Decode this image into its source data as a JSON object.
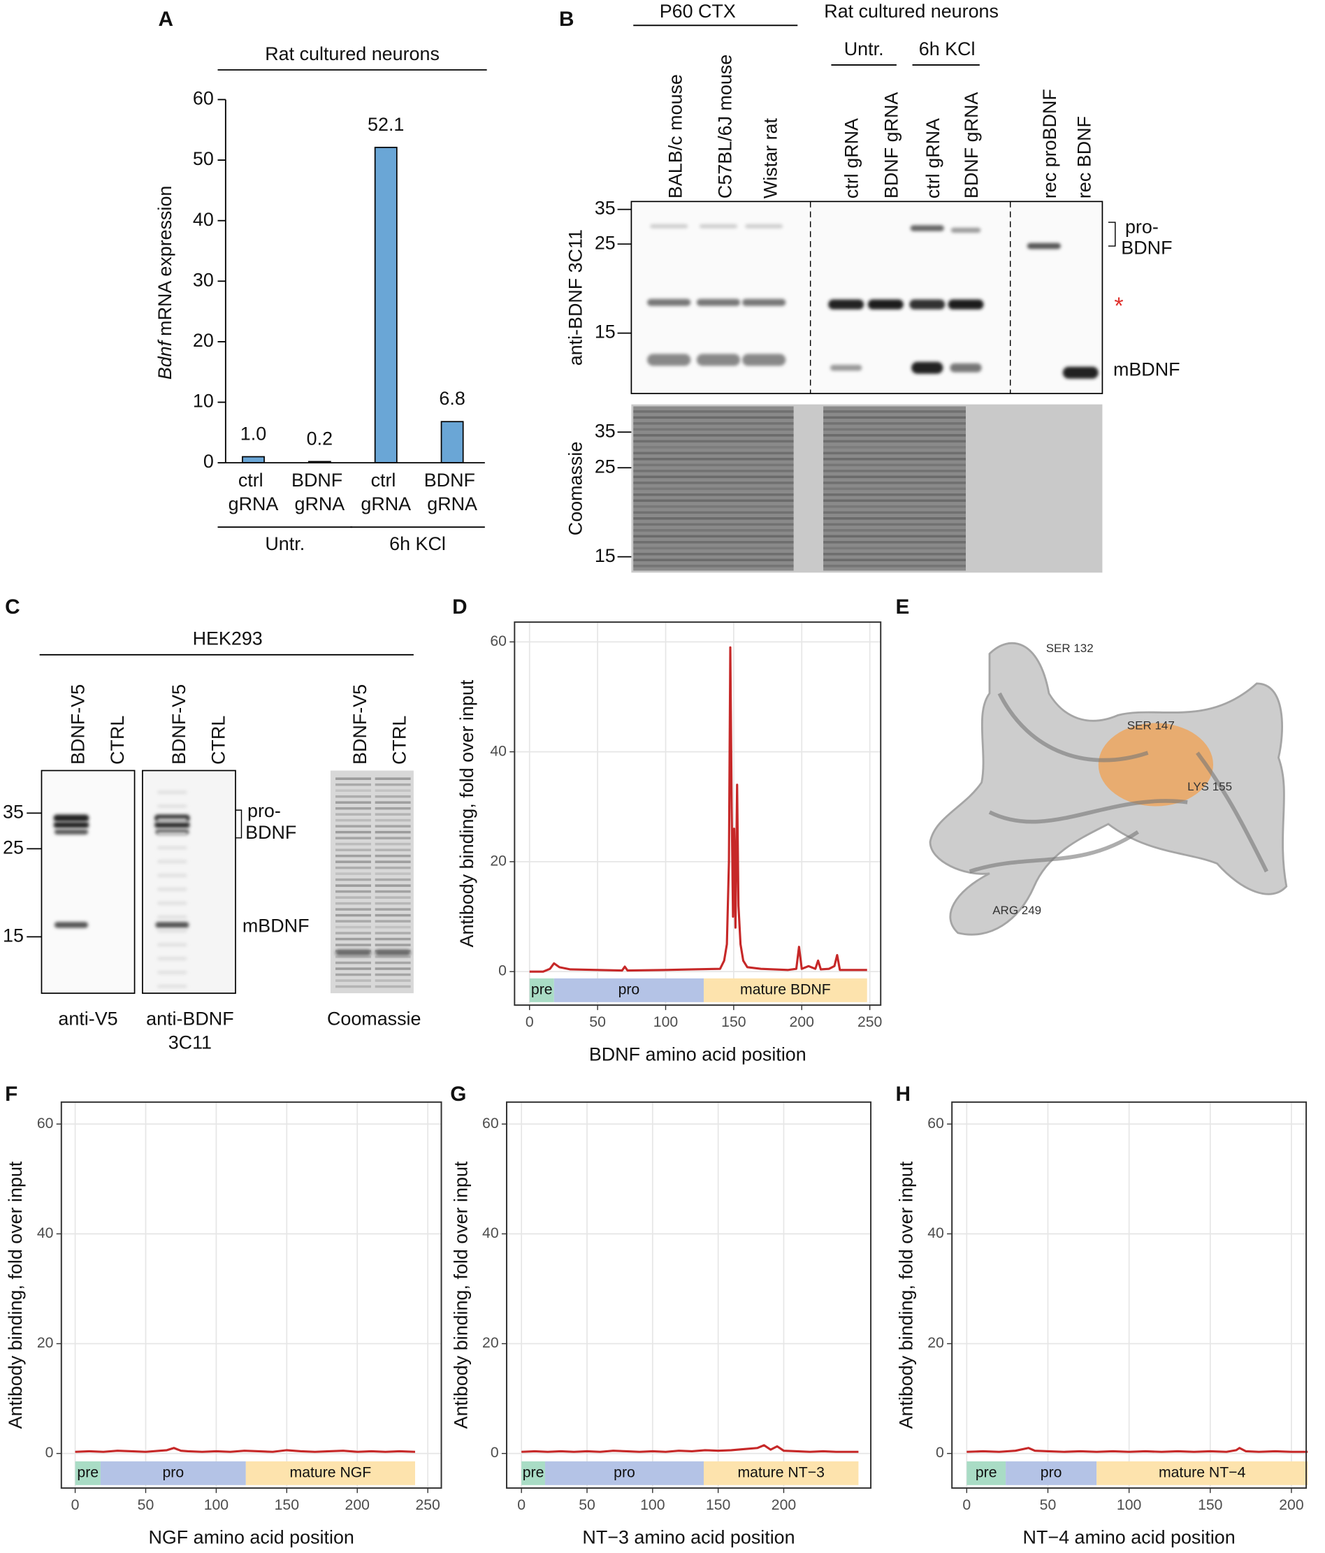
{
  "chart_data": [
    {
      "type": "bar",
      "panel": "A",
      "header": "Rat cultured neurons",
      "y_label_italic": "Bdnf",
      "y_label": "mRNA expression",
      "categories": [
        "ctrl gRNA",
        "BDNF gRNA",
        "ctrl gRNA",
        "BDNF gRNA"
      ],
      "groups": [
        "Untr.",
        "6h KCl"
      ],
      "values": [
        1.0,
        0.2,
        52.1,
        6.8
      ],
      "value_labels": [
        "1.0",
        "0.2",
        "52.1",
        "6.8"
      ],
      "color": "#6aa6d6",
      "ylim": [
        0,
        60
      ],
      "yticks": [
        0,
        10,
        20,
        30,
        40,
        50,
        60
      ]
    },
    {
      "type": "line",
      "panel": "D",
      "x_label": "BDNF amino acid position",
      "y_label": "Antibody binding, fold over input",
      "x": [
        0,
        10,
        15,
        18,
        22,
        30,
        50,
        68,
        70,
        72,
        100,
        120,
        140,
        143,
        145,
        146.5,
        147.5,
        148.5,
        149.5,
        150.3,
        151.3,
        152.5,
        153.5,
        155,
        157,
        160,
        170,
        190,
        196,
        198,
        200,
        205,
        210,
        212,
        214,
        220,
        224,
        226,
        228,
        248
      ],
      "values": [
        0,
        0,
        0.5,
        1.5,
        0.8,
        0.4,
        0.3,
        0.2,
        0.9,
        0.2,
        0.3,
        0.4,
        0.5,
        2,
        5,
        20,
        59,
        30,
        10,
        26,
        8,
        34,
        12,
        5,
        2,
        0.8,
        0.5,
        0.3,
        0.5,
        4.5,
        0.5,
        1,
        0.5,
        2,
        0.4,
        0.5,
        1,
        3,
        0.3,
        0.3
      ],
      "color": "#c62828",
      "xlim": [
        -11,
        258
      ],
      "ylim": [
        -6.1,
        63.6
      ],
      "xticks": [
        0,
        50,
        100,
        150,
        200,
        250
      ],
      "yticks": [
        0,
        20,
        40,
        60
      ],
      "grid": true,
      "regions": [
        {
          "label": "pre",
          "start": 0,
          "end": 18,
          "color": "#a9dcc5"
        },
        {
          "label": "pro",
          "start": 18,
          "end": 128,
          "color": "#b4c3e6"
        },
        {
          "label": "mature BDNF",
          "start": 128,
          "end": 248,
          "color": "#fde3ad"
        }
      ]
    },
    {
      "type": "line",
      "panel": "F",
      "x_label": "NGF amino acid position",
      "y_label": "Antibody binding, fold over input",
      "x": [
        0,
        10,
        20,
        30,
        40,
        50,
        60,
        65,
        70,
        75,
        80,
        90,
        100,
        110,
        120,
        130,
        140,
        150,
        160,
        170,
        180,
        190,
        200,
        210,
        220,
        230,
        241
      ],
      "values": [
        0.3,
        0.4,
        0.3,
        0.5,
        0.4,
        0.3,
        0.5,
        0.6,
        1.0,
        0.5,
        0.4,
        0.3,
        0.4,
        0.3,
        0.5,
        0.4,
        0.3,
        0.6,
        0.4,
        0.3,
        0.4,
        0.5,
        0.3,
        0.4,
        0.3,
        0.4,
        0.3
      ],
      "color": "#c62828",
      "xlim": [
        -9.8,
        259.6
      ],
      "ylim": [
        -6.3,
        64
      ],
      "xticks": [
        0,
        50,
        100,
        150,
        200,
        250
      ],
      "yticks": [
        0,
        20,
        40,
        60
      ],
      "grid": true,
      "regions": [
        {
          "label": "pre",
          "start": 0,
          "end": 18,
          "color": "#a9dcc5"
        },
        {
          "label": "pro",
          "start": 18,
          "end": 121,
          "color": "#b4c3e6"
        },
        {
          "label": "mature NGF",
          "start": 121,
          "end": 241,
          "color": "#fde3ad"
        }
      ]
    },
    {
      "type": "line",
      "panel": "G",
      "x_label": "NT−3 amino acid position",
      "y_label": "Antibody binding, fold over input",
      "x": [
        0,
        10,
        20,
        30,
        40,
        50,
        60,
        70,
        80,
        90,
        100,
        110,
        120,
        130,
        140,
        150,
        160,
        170,
        180,
        185,
        190,
        195,
        200,
        210,
        220,
        230,
        240,
        257
      ],
      "values": [
        0.3,
        0.4,
        0.3,
        0.4,
        0.3,
        0.4,
        0.3,
        0.5,
        0.4,
        0.3,
        0.4,
        0.3,
        0.5,
        0.4,
        0.6,
        0.5,
        0.6,
        0.8,
        1.0,
        1.5,
        0.7,
        1.3,
        0.5,
        0.4,
        0.3,
        0.4,
        0.3,
        0.3
      ],
      "color": "#c62828",
      "xlim": [
        -11.3,
        266.4
      ],
      "ylim": [
        -6.3,
        64
      ],
      "xticks": [
        0,
        50,
        100,
        150,
        200
      ],
      "yticks": [
        0,
        20,
        40,
        60
      ],
      "grid": true,
      "regions": [
        {
          "label": "pre",
          "start": 0,
          "end": 18,
          "color": "#a9dcc5"
        },
        {
          "label": "pro",
          "start": 18,
          "end": 139,
          "color": "#b4c3e6"
        },
        {
          "label": "mature NT−3",
          "start": 139,
          "end": 257,
          "color": "#fde3ad"
        }
      ]
    },
    {
      "type": "line",
      "panel": "H",
      "x_label": "NT−4 amino acid position",
      "y_label": "Antibody binding, fold over input",
      "x": [
        0,
        10,
        20,
        30,
        38,
        42,
        50,
        60,
        70,
        80,
        90,
        100,
        110,
        120,
        130,
        140,
        150,
        160,
        166,
        168,
        172,
        180,
        190,
        200,
        210
      ],
      "values": [
        0.3,
        0.4,
        0.3,
        0.5,
        1.0,
        0.5,
        0.4,
        0.3,
        0.4,
        0.3,
        0.4,
        0.3,
        0.4,
        0.3,
        0.4,
        0.3,
        0.4,
        0.3,
        0.6,
        1.0,
        0.4,
        0.3,
        0.4,
        0.3,
        0.3
      ],
      "color": "#c62828",
      "xlim": [
        -9.1,
        209.1
      ],
      "ylim": [
        -6.3,
        64
      ],
      "xticks": [
        0,
        50,
        100,
        150,
        200
      ],
      "yticks": [
        0,
        20,
        40,
        60
      ],
      "grid": true,
      "regions": [
        {
          "label": "pre",
          "start": 0,
          "end": 24,
          "color": "#a9dcc5"
        },
        {
          "label": "pro",
          "start": 24,
          "end": 80,
          "color": "#b4c3e6"
        },
        {
          "label": "mature NT−4",
          "start": 80,
          "end": 210,
          "color": "#fde3ad"
        }
      ]
    }
  ],
  "panel_b": {
    "label": "B",
    "headers": [
      "P60 CTX",
      "Rat cultured neurons",
      "Untr.",
      "6h KCl"
    ],
    "lanes": [
      "BALB/c mouse",
      "C57BL/6J mouse",
      "Wistar rat",
      "ctrl gRNA",
      "BDNF gRNA",
      "ctrl gRNA",
      "BDNF gRNA",
      "rec proBDNF",
      "rec BDNF"
    ],
    "blot_label": "anti-BDNF 3C11",
    "markers": [
      35,
      25,
      15
    ],
    "stain_label": "Coomassie",
    "stain_markers": [
      35,
      25,
      15
    ],
    "annotations": [
      "pro-",
      "BDNF",
      "*",
      "mBDNF"
    ]
  },
  "panel_c": {
    "label": "C",
    "header": "HEK293",
    "lanes": [
      "BDNF-V5",
      "CTRL",
      "BDNF-V5",
      "CTRL",
      "BDNF-V5",
      "CTRL"
    ],
    "markers": [
      35,
      25,
      15
    ],
    "annotations": [
      "pro-",
      "BDNF",
      "mBDNF"
    ],
    "blot_labels": [
      "anti-V5",
      "anti-BDNF",
      "3C11",
      "Coomassie"
    ]
  },
  "panel_e": {
    "label": "E",
    "residues": [
      "SER 132",
      "SER 147",
      "LYS 155",
      "ARG 249"
    ]
  }
}
